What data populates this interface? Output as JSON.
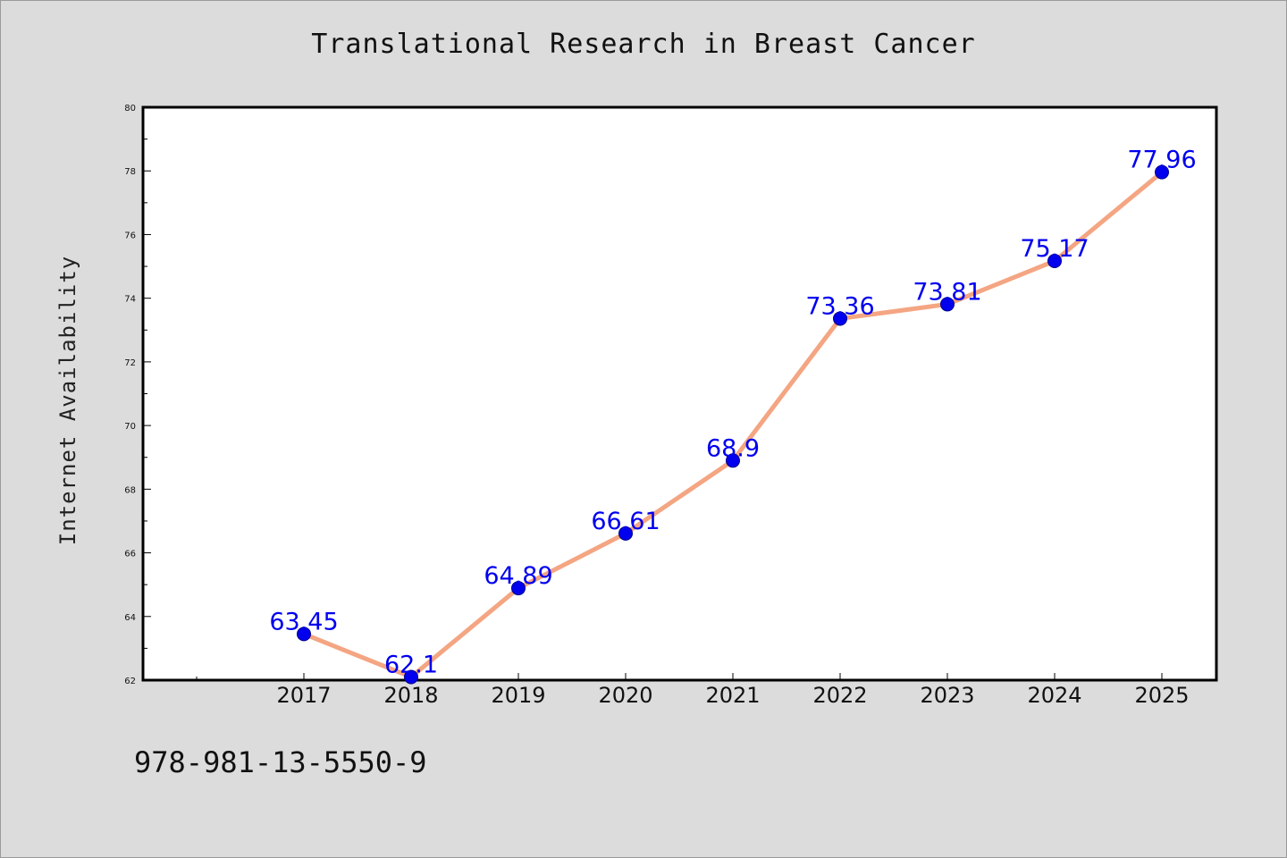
{
  "chart_data": {
    "type": "line",
    "title": "Translational Research in Breast Cancer",
    "xlabel": "",
    "ylabel": "Internet Availability",
    "categories": [
      "2017",
      "2018",
      "2019",
      "2020",
      "2021",
      "2022",
      "2023",
      "2024",
      "2025"
    ],
    "series": [
      {
        "values": [
          63.45,
          62.1,
          64.89,
          66.61,
          68.9,
          73.36,
          73.81,
          75.17,
          77.96
        ],
        "labels": [
          "63.45",
          "62.1",
          "64.89",
          "66.61",
          "68.9",
          "73.36",
          "73.81",
          "75.17",
          "77.96"
        ],
        "line_color": "#f4a582",
        "marker_color": "#0000ee",
        "label_color": "#0000ee"
      }
    ],
    "ylim": [
      62,
      80
    ],
    "yticks": [
      "62",
      "64",
      "66",
      "68",
      "70",
      "72",
      "74",
      "76",
      "78",
      "80"
    ],
    "grid": false,
    "legend": "none"
  },
  "footer": {
    "isbn": "978-981-13-5550-9"
  },
  "colors": {
    "background": "#dcdcdc",
    "plot_background": "#ffffff"
  }
}
